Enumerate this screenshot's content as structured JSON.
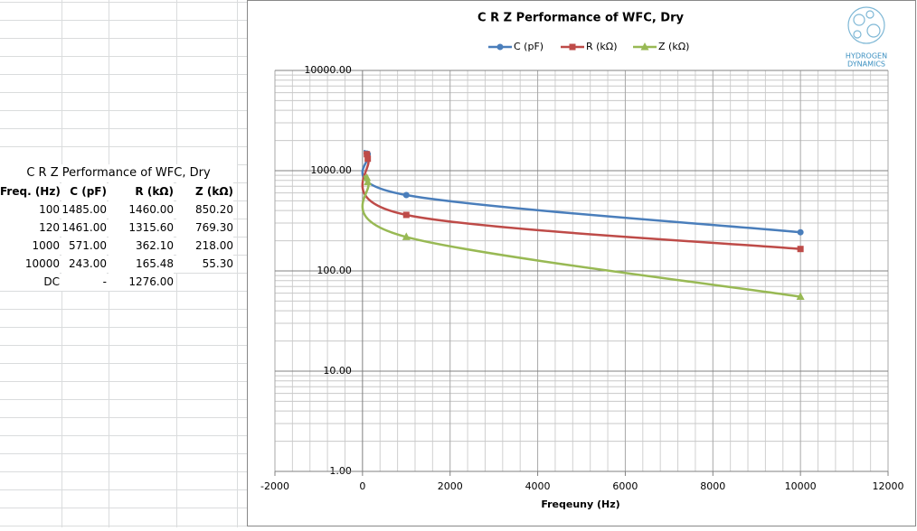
{
  "table": {
    "title": "C R Z Performance of WFC, Dry",
    "header": [
      "Freq. (Hz)",
      "C (pF)",
      "R (kΩ)",
      "Z (kΩ)"
    ],
    "rows": [
      [
        "100",
        "1485.00",
        "1460.00",
        "850.20"
      ],
      [
        "120",
        "1461.00",
        "1315.60",
        "769.30"
      ],
      [
        "1000",
        "571.00",
        "362.10",
        "218.00"
      ],
      [
        "10000",
        "243.00",
        "165.48",
        "55.30"
      ],
      [
        "DC",
        "-",
        "1276.00"
      ]
    ]
  },
  "logo": {
    "line1": "HYDROGEN",
    "line2": "DYNAMICS"
  },
  "chart_data": {
    "type": "line",
    "title": "C R Z Performance of WFC, Dry",
    "x_label": "Freqeuny (Hz)",
    "x": [
      100,
      120,
      1000,
      10000
    ],
    "series": [
      {
        "name": "C (pF)",
        "color": "#4a7ebb",
        "marker": "circle",
        "values": [
          1485,
          1461,
          571,
          243
        ]
      },
      {
        "name": "R (kΩ)",
        "color": "#be4b48",
        "marker": "square",
        "values": [
          1460,
          1315.6,
          362.1,
          165.48
        ]
      },
      {
        "name": "Z (kΩ)",
        "color": "#98b954",
        "marker": "triangle",
        "values": [
          850.2,
          769.3,
          218,
          55.3
        ]
      }
    ],
    "xlim": [
      -2000,
      12000
    ],
    "xticks": [
      -2000,
      0,
      2000,
      4000,
      6000,
      8000,
      10000,
      12000
    ],
    "ylim": [
      1,
      10000
    ],
    "y_scale": "log",
    "yticks": [
      {
        "value": 1,
        "label": "1.00"
      },
      {
        "value": 10,
        "label": "10.00"
      },
      {
        "value": 100,
        "label": "100.00"
      },
      {
        "value": 1000,
        "label": "1000.00"
      },
      {
        "value": 10000,
        "label": "10000.00"
      }
    ],
    "grid": true,
    "legend": "top",
    "smooth": true
  }
}
